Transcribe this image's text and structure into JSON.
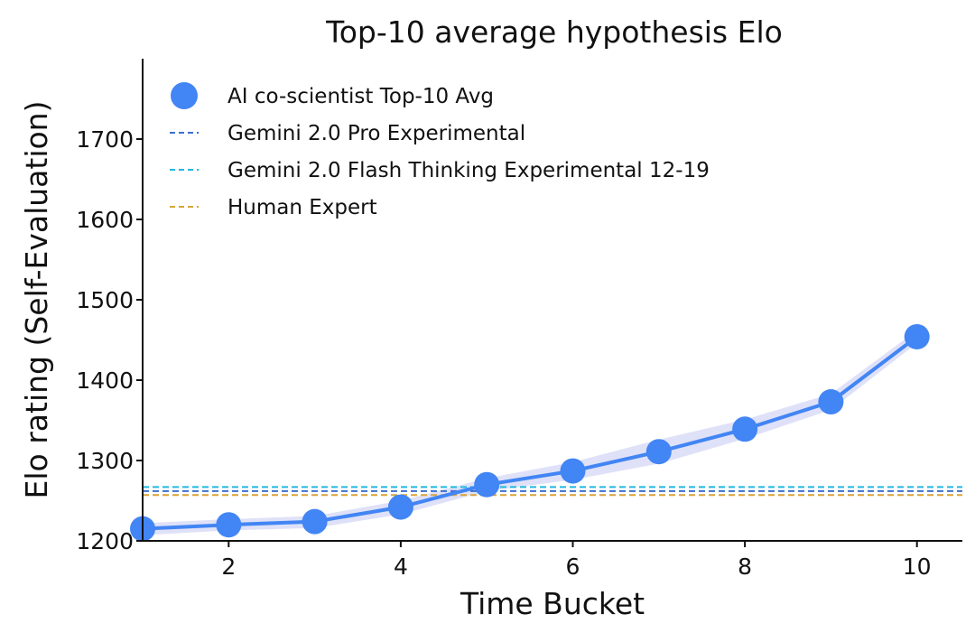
{
  "chart_data": {
    "type": "line",
    "title": "Top-10 average hypothesis Elo",
    "xlabel": "Time Bucket",
    "ylabel": "Elo rating (Self-Evaluation)",
    "xlim": [
      1,
      10.5
    ],
    "ylim": [
      1200,
      1800
    ],
    "xticks": [
      2,
      4,
      6,
      8,
      10
    ],
    "yticks": [
      1200,
      1300,
      1400,
      1500,
      1600,
      1700
    ],
    "grid": false,
    "legend_position": "upper-left",
    "series": [
      {
        "name": "AI co-scientist Top-10 Avg",
        "kind": "line-with-markers",
        "color": "#4285f4",
        "band_color": "#c9cdf3",
        "x": [
          1,
          2,
          3,
          4,
          5,
          6,
          7,
          8,
          9,
          10
        ],
        "y": [
          1215,
          1220,
          1224,
          1242,
          1270,
          1287,
          1311,
          1339,
          1373,
          1454
        ],
        "band_lower": [
          1207,
          1213,
          1216,
          1233,
          1262,
          1276,
          1296,
          1327,
          1363,
          1446
        ],
        "band_upper": [
          1222,
          1227,
          1231,
          1250,
          1278,
          1298,
          1326,
          1351,
          1383,
          1462
        ]
      },
      {
        "name": "Gemini 2.0 Pro Experimental",
        "kind": "hline",
        "color": "#3b6fd0",
        "y": 1262
      },
      {
        "name": "Gemini 2.0 Flash Thinking Experimental 12-19",
        "kind": "hline",
        "color": "#22b8e0",
        "y": 1267
      },
      {
        "name": "Human Expert",
        "kind": "hline",
        "color": "#d9a43a",
        "y": 1257
      }
    ]
  }
}
